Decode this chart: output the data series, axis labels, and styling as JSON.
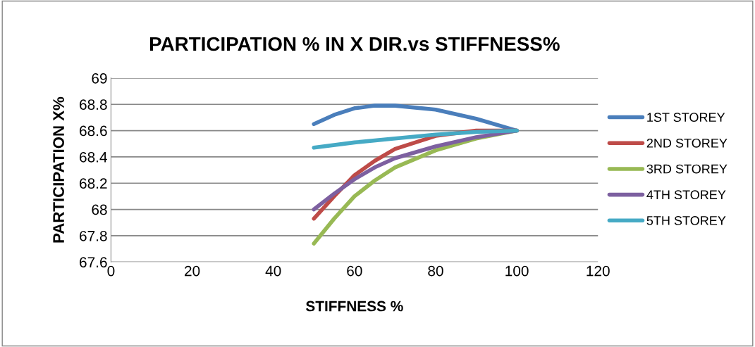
{
  "chart_data": {
    "type": "line",
    "title": "PARTICIPATION % IN X DIR.vs STIFFNESS%",
    "xlabel": "STIFFNESS %",
    "ylabel": "PARTICIPATION X%",
    "xlim": [
      0,
      120
    ],
    "xticks": [
      0,
      20,
      40,
      60,
      80,
      100,
      120
    ],
    "ylim": [
      67.6,
      69
    ],
    "yticks": [
      67.6,
      67.8,
      68,
      68.2,
      68.4,
      68.6,
      68.8,
      69
    ],
    "grid": "y",
    "legend": "right",
    "marker": "none",
    "line_style": "solid",
    "series": [
      {
        "name": "1ST STOREY",
        "color": "#4a7ebb",
        "x": [
          50,
          55,
          60,
          65,
          70,
          80,
          90,
          100
        ],
        "values": [
          68.65,
          68.72,
          68.77,
          68.79,
          68.79,
          68.76,
          68.69,
          68.6
        ]
      },
      {
        "name": "2ND STOREY",
        "color": "#be4b48",
        "x": [
          50,
          55,
          60,
          65,
          70,
          80,
          90,
          100
        ],
        "values": [
          67.93,
          68.1,
          68.26,
          68.37,
          68.46,
          68.56,
          68.6,
          68.6
        ]
      },
      {
        "name": "3RD STOREY",
        "color": "#98b954",
        "x": [
          50,
          55,
          60,
          65,
          70,
          80,
          90,
          100
        ],
        "values": [
          67.74,
          67.93,
          68.1,
          68.22,
          68.32,
          68.45,
          68.54,
          68.6
        ]
      },
      {
        "name": "4TH STOREY",
        "color": "#7d60a0",
        "x": [
          50,
          55,
          60,
          65,
          70,
          80,
          90,
          100
        ],
        "values": [
          68.0,
          68.12,
          68.23,
          68.32,
          68.39,
          68.48,
          68.55,
          68.6
        ]
      },
      {
        "name": "5TH STOREY",
        "color": "#46aac5",
        "x": [
          50,
          60,
          70,
          80,
          90,
          100
        ],
        "values": [
          68.47,
          68.51,
          68.54,
          68.57,
          68.59,
          68.6
        ]
      }
    ]
  }
}
